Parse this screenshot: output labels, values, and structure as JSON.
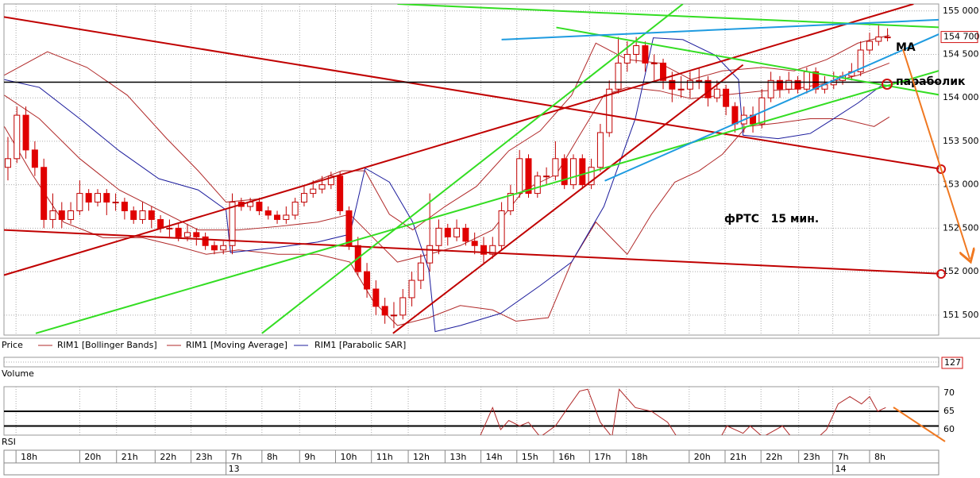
{
  "chart_data": [
    {
      "type": "candlestick",
      "price_label": "Price",
      "xlim": [
        -0.44,
        103.7
      ],
      "ylim": [
        151270,
        155080
      ],
      "yticks": [
        {
          "value": 155000,
          "label": "155 000"
        },
        {
          "value": 154500,
          "label": "154 500"
        },
        {
          "value": 154000,
          "label": "154 000"
        },
        {
          "value": 153500,
          "label": "153 500"
        },
        {
          "value": 153000,
          "label": "153 000"
        },
        {
          "value": 152500,
          "label": "152 500"
        },
        {
          "value": 152000,
          "label": "152 000"
        },
        {
          "value": 151500,
          "label": "151 500"
        }
      ],
      "grid": true,
      "xticks": [
        {
          "value": 0.9,
          "label": "18h"
        },
        {
          "value": 8,
          "label": "20h"
        },
        {
          "value": 12.1,
          "label": "21h"
        },
        {
          "value": 16.4,
          "label": "22h"
        },
        {
          "value": 20.4,
          "label": "23h"
        },
        {
          "value": 24.3,
          "label": "7h"
        },
        {
          "value": 28.3,
          "label": "8h"
        },
        {
          "value": 32.5,
          "label": "9h"
        },
        {
          "value": 36.5,
          "label": "10h"
        },
        {
          "value": 40.5,
          "label": "11h"
        },
        {
          "value": 44.6,
          "label": "12h"
        },
        {
          "value": 48.7,
          "label": "13h"
        },
        {
          "value": 52.7,
          "label": "14h"
        },
        {
          "value": 56.7,
          "label": "15h"
        },
        {
          "value": 60.8,
          "label": "16h"
        },
        {
          "value": 64.8,
          "label": "17h"
        },
        {
          "value": 68.9,
          "label": "18h"
        },
        {
          "value": 75.9,
          "label": "20h"
        },
        {
          "value": 79.9,
          "label": "21h"
        },
        {
          "value": 83.9,
          "label": "22h"
        },
        {
          "value": 88.1,
          "label": "23h"
        },
        {
          "value": 91.9,
          "label": "7h"
        },
        {
          "value": 96,
          "label": "8h"
        }
      ],
      "date_ticks": [
        {
          "value": 24.3,
          "label": "13"
        },
        {
          "value": 91.9,
          "label": "14"
        }
      ],
      "up_color": "#ffffff",
      "down_color": "#e00000",
      "wick_color": "#c00000",
      "open": [
        153200,
        153300,
        153800,
        153400,
        153200,
        152600,
        152700,
        152600,
        152700,
        152900,
        152800,
        152900,
        152800,
        152800,
        152700,
        152600,
        152700,
        152600,
        152500,
        152500,
        152400,
        152450,
        152400,
        152300,
        152250,
        152300,
        152800,
        152750,
        152800,
        152700,
        152650,
        152600,
        152650,
        152800,
        152900,
        152950,
        153000,
        153100,
        152700,
        152300,
        152000,
        151800,
        151600,
        151500,
        151500,
        151700,
        151900,
        152100,
        152300,
        152500,
        152400,
        152500,
        152350,
        152300,
        152200,
        152300,
        152700,
        152900,
        153300,
        152900,
        153100,
        153100,
        153300,
        153000,
        153300,
        153000,
        153200,
        153600,
        154100,
        154400,
        154500,
        154600,
        154400,
        154400,
        154200,
        154100,
        154100,
        154200,
        154200,
        154000,
        154100,
        153900,
        153700,
        153800,
        153700,
        154000,
        154200,
        154100,
        154200,
        154100,
        154300,
        154100,
        154150,
        154200,
        154250,
        154300,
        154550,
        154650,
        154700
      ],
      "high": [
        153550,
        153900,
        153900,
        153500,
        153300,
        152900,
        152800,
        152800,
        153050,
        152950,
        152950,
        152950,
        152900,
        152850,
        152750,
        152800,
        152750,
        152650,
        152600,
        152550,
        152550,
        152500,
        152450,
        152350,
        152350,
        152900,
        152850,
        152850,
        152850,
        152750,
        152700,
        152750,
        152850,
        153000,
        153050,
        153100,
        153150,
        153150,
        152750,
        152400,
        152100,
        151900,
        151700,
        151650,
        151800,
        152000,
        152200,
        152900,
        152600,
        152550,
        152600,
        152550,
        152450,
        152400,
        152400,
        152800,
        153000,
        153400,
        153350,
        153150,
        153200,
        153500,
        153350,
        153350,
        153350,
        153300,
        153700,
        154200,
        154700,
        154650,
        154700,
        154650,
        154500,
        154450,
        154300,
        154250,
        154300,
        154350,
        154250,
        154200,
        154150,
        153950,
        153900,
        153900,
        154100,
        154300,
        154250,
        154300,
        154250,
        154350,
        154350,
        154250,
        154300,
        154300,
        154400,
        154650,
        154750,
        154850,
        154800
      ],
      "low": [
        153050,
        153250,
        153300,
        153100,
        152500,
        152500,
        152500,
        152550,
        152650,
        152700,
        152750,
        152650,
        152700,
        152600,
        152550,
        152550,
        152500,
        152450,
        152400,
        152350,
        152350,
        152300,
        152250,
        152200,
        152200,
        152200,
        152700,
        152700,
        152650,
        152600,
        152550,
        152550,
        152600,
        152750,
        152850,
        152900,
        152950,
        152650,
        152250,
        151950,
        151700,
        151500,
        151400,
        151350,
        151450,
        151600,
        151800,
        152000,
        152200,
        152300,
        152350,
        152300,
        152200,
        152100,
        152150,
        152250,
        152650,
        152850,
        152850,
        152850,
        153000,
        153050,
        152950,
        152950,
        152950,
        152950,
        153150,
        153550,
        154050,
        154300,
        154400,
        154300,
        154200,
        154100,
        153950,
        154000,
        154000,
        154100,
        153900,
        153950,
        153800,
        153600,
        153600,
        153600,
        153650,
        153950,
        154000,
        154050,
        154050,
        154050,
        154050,
        154050,
        154100,
        154150,
        154200,
        154250,
        154500,
        154600,
        154650
      ],
      "close": [
        153300,
        153800,
        153400,
        153200,
        152600,
        152700,
        152600,
        152700,
        152900,
        152800,
        152900,
        152800,
        152800,
        152700,
        152600,
        152700,
        152600,
        152500,
        152500,
        152400,
        152450,
        152400,
        152300,
        152250,
        152300,
        152800,
        152750,
        152800,
        152700,
        152650,
        152600,
        152650,
        152800,
        152900,
        152950,
        153000,
        153100,
        152700,
        152300,
        152000,
        151800,
        151600,
        151500,
        151500,
        151700,
        151900,
        152100,
        152300,
        152500,
        152400,
        152500,
        152350,
        152300,
        152200,
        152300,
        152700,
        152900,
        153300,
        152900,
        153100,
        153100,
        153300,
        153000,
        153300,
        153000,
        153200,
        153600,
        154100,
        154400,
        154500,
        154600,
        154400,
        154400,
        154200,
        154100,
        154100,
        154200,
        154200,
        154000,
        154100,
        153900,
        153700,
        153800,
        153700,
        154000,
        154200,
        154100,
        154200,
        154100,
        154300,
        154100,
        154150,
        154200,
        154250,
        154300,
        154550,
        154650,
        154700,
        154700
      ],
      "series": [
        {
          "name": "RIM1 [Bollinger Bands]",
          "color": "#b02828",
          "lines": [
            {
              "x": [
                -0.4,
                4.4,
                8.8,
                13.3,
                17.7,
                21.2,
                24.3,
                28.3,
                32.7,
                37.2,
                39.8,
                42.5,
                45.1,
                48.7,
                52.2,
                55.8,
                59.3,
                62.8,
                65.5,
                69.0,
                72.6,
                76.1,
                79.6,
                84.1,
                87.6,
                91.2,
                94.7,
                98.2
              ],
              "values": [
                154260,
                154530,
                154350,
                154030,
                153530,
                153160,
                152800,
                152840,
                152980,
                153160,
                153160,
                152660,
                152480,
                152750,
                152980,
                153390,
                153620,
                154030,
                154630,
                154440,
                154400,
                154210,
                154310,
                154350,
                154310,
                154440,
                154630,
                154720
              ]
            },
            {
              "x": [
                -0.4,
                2.7,
                6.2,
                10.6,
                15.0,
                18.6,
                22.1,
                25.7,
                30.1,
                34.5,
                38.1,
                40.7,
                43.4,
                46.9,
                50.4,
                54.0,
                56.6,
                60.2,
                62.8,
                65.5,
                69.0,
                71.7,
                74.3,
                77.0,
                79.6,
                82.3,
                85.8,
                89.4,
                92.9,
                96.5,
                98.2
              ],
              "values": [
                153670,
                153120,
                152570,
                152390,
                152390,
                152300,
                152200,
                152250,
                152200,
                152200,
                152110,
                151660,
                151380,
                151470,
                151610,
                151560,
                151430,
                151470,
                152110,
                152570,
                152200,
                152660,
                153030,
                153160,
                153350,
                153670,
                153710,
                153760,
                153760,
                153670,
                153780
              ]
            }
          ]
        },
        {
          "name": "RIM1 [Moving Average]",
          "color": "#b02828",
          "lines": [
            {
              "x": [
                -0.4,
                3.5,
                8.0,
                12.4,
                16.8,
                21.2,
                25.7,
                30.1,
                34.5,
                38.1,
                40.7,
                43.4,
                46.9,
                50.4,
                54.0,
                57.5,
                61.1,
                63.7,
                66.4,
                69.0,
                72.6,
                76.1,
                79.6,
                84.1,
                87.6,
                91.2,
                94.7,
                98.2
              ],
              "values": [
                154030,
                153760,
                153300,
                152940,
                152710,
                152480,
                152480,
                152520,
                152570,
                152660,
                152390,
                152110,
                152200,
                152300,
                152480,
                152940,
                153120,
                153570,
                154030,
                154120,
                154080,
                153990,
                154030,
                154080,
                154100,
                154170,
                154260,
                154400
              ]
            }
          ]
        },
        {
          "name": "RIM1 [Parabolic SAR]",
          "color": "#1c1c9c",
          "lines": [
            {
              "x": [
                -0.4,
                3.5,
                8.0,
                12.4,
                16.8,
                21.2,
                24.3,
                24.8,
                30.1,
                34.5,
                38.1,
                39.8,
                42.5,
                45.1,
                46.9,
                47.6,
                50.4,
                54.9,
                59.3,
                62.8,
                66.4,
                69.9,
                71.9,
                75.2,
                78.8,
                81.4,
                81.9,
                85.8,
                89.4,
                92.0,
                94.7,
                97.3
              ],
              "values": [
                154210,
                154120,
                153760,
                153390,
                153070,
                152940,
                152710,
                152220,
                152280,
                152340,
                152430,
                153190,
                153030,
                152570,
                152020,
                151310,
                151380,
                151520,
                151840,
                152110,
                152750,
                153760,
                154690,
                154670,
                154490,
                154210,
                153570,
                153530,
                153590,
                153760,
                153940,
                154140
              ]
            }
          ]
        }
      ],
      "trendlines": [
        {
          "color": "#c00000",
          "x": [
            -0.44,
            104
          ],
          "values": [
            154930,
            153180
          ]
        },
        {
          "color": "#c00000",
          "x": [
            -0.44,
            104
          ],
          "values": [
            152480,
            151975
          ]
        },
        {
          "color": "#c00000",
          "x": [
            -0.44,
            100.9
          ],
          "values": [
            151960,
            155080
          ]
        },
        {
          "color": "#c00000",
          "x": [
            42.9,
            81.9
          ],
          "values": [
            151290,
            154380
          ]
        },
        {
          "color": "#000000",
          "x": [
            -0.44,
            104
          ],
          "values": [
            154180,
            154180
          ]
        },
        {
          "color": "#33dd22",
          "x": [
            3.1,
            104
          ],
          "values": [
            151290,
            154320
          ]
        },
        {
          "color": "#33dd22",
          "x": [
            28.3,
            75.2
          ],
          "values": [
            151290,
            155080
          ]
        },
        {
          "color": "#33dd22",
          "x": [
            43.4,
            104
          ],
          "values": [
            155080,
            154810
          ]
        },
        {
          "color": "#33dd22",
          "x": [
            61.1,
            104
          ],
          "values": [
            154810,
            154030
          ]
        },
        {
          "color": "#1e9be0",
          "x": [
            55,
            104
          ],
          "values": [
            154670,
            154900
          ]
        },
        {
          "color": "#1e9be0",
          "x": [
            66.5,
            104
          ],
          "values": [
            153045,
            154745
          ]
        }
      ],
      "last_price": {
        "value": 154700,
        "label": "154 700"
      },
      "annotations": [
        "MA",
        "параболик",
        "фРТС   15 мин."
      ]
    },
    {
      "type": "volume",
      "label": "Volume",
      "last_value": 127
    },
    {
      "type": "line",
      "label": "RSI",
      "color": "#b02828",
      "xlim": [
        -0.44,
        103.7
      ],
      "ylim": [
        58.5,
        71.7
      ],
      "yticks": [
        70,
        65,
        60
      ],
      "levels": [
        65,
        61
      ],
      "x": [
        52.2,
        54,
        54.9,
        55.8,
        57,
        58,
        59.3,
        61,
        62.4,
        63.7,
        64.6,
        66,
        67.3,
        68.1,
        69.9,
        71.7,
        73.5,
        74.8,
        79.2,
        80.1,
        81.9,
        82.7,
        84.1,
        86.3,
        87.6,
        90.3,
        91.2,
        92.5,
        93.8,
        95.1,
        96,
        96.9,
        97.8
      ],
      "values": [
        56,
        66,
        60,
        62.5,
        61,
        62,
        58,
        61,
        66,
        70.5,
        71,
        62,
        58,
        71,
        66,
        65,
        62,
        57,
        57,
        61,
        59,
        61,
        58,
        61,
        57,
        58,
        60,
        67,
        69,
        67,
        69,
        65,
        66
      ]
    }
  ]
}
